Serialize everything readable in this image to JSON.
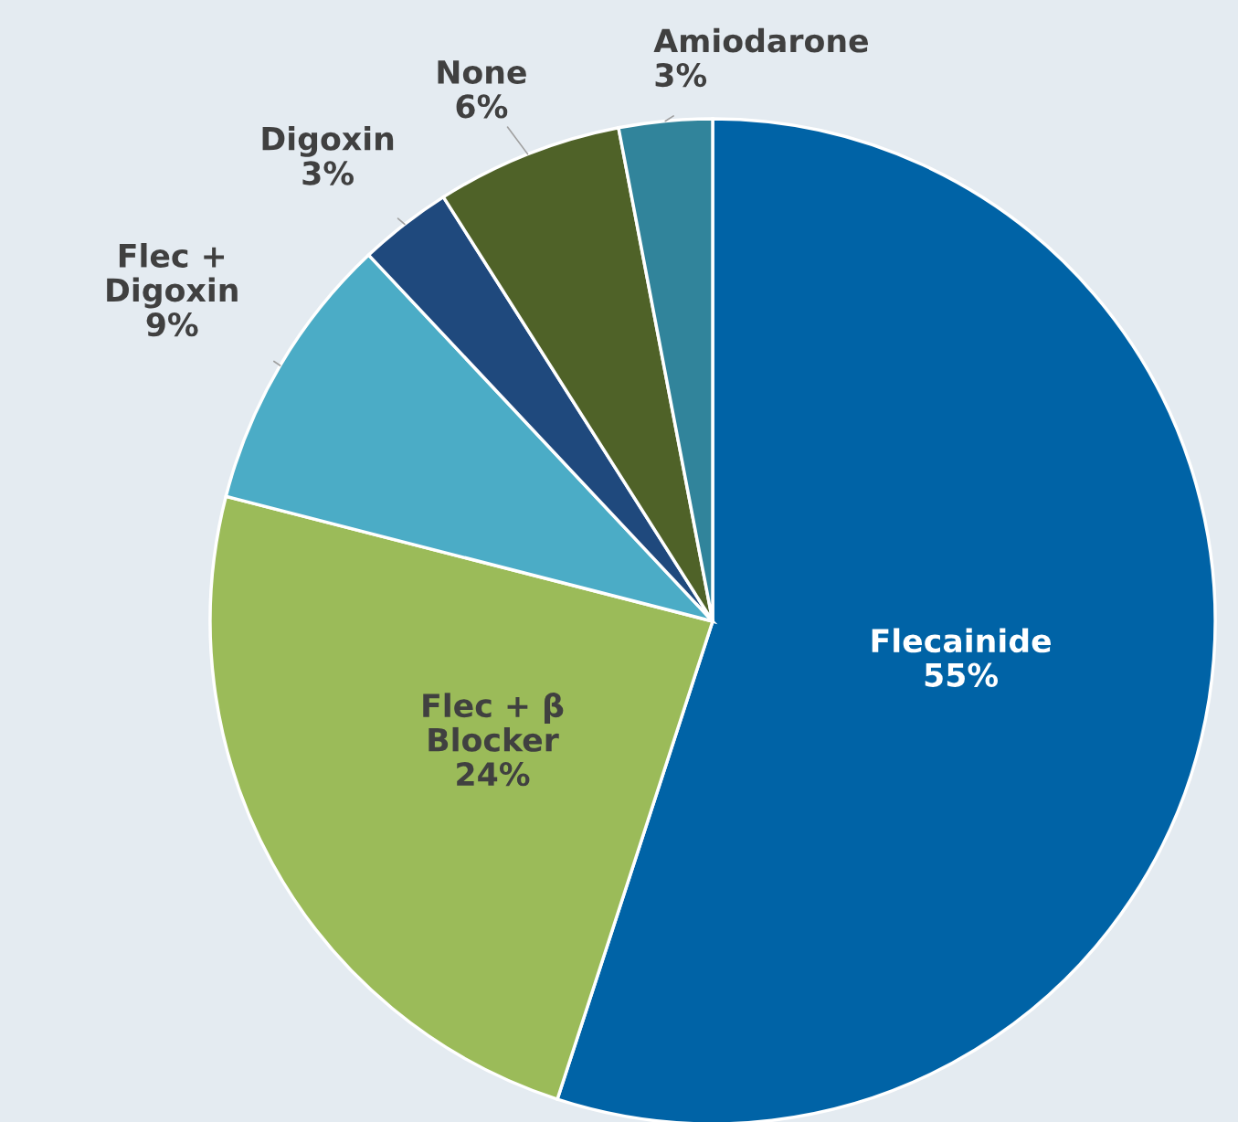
{
  "chart_data": {
    "type": "pie",
    "categories": [
      "Flecainide",
      "Flec + β\nBlocker",
      "Flec +\nDigoxin",
      "Digoxin",
      "None",
      "Amiodarone"
    ],
    "values": [
      55,
      24,
      9,
      3,
      6,
      3
    ],
    "value_labels": [
      "55%",
      "24%",
      "9%",
      "3%",
      "6%",
      "3%"
    ],
    "colors": [
      "#0063a6",
      "#9bbb59",
      "#4bacc6",
      "#1f497d",
      "#4f6228",
      "#31849b"
    ]
  }
}
